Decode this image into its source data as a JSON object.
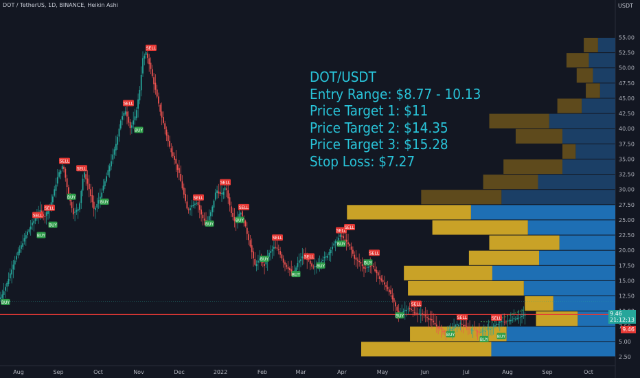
{
  "header": {
    "symbol_line": "DOT / TetherUS, 1D, BINANCE, Heikin Ashi",
    "axis_unit": "USDT"
  },
  "annotation": {
    "lines": [
      "DOT/USDT",
      "Entry Range: $8.77 - 10.13",
      "Price Target 1: $11",
      "Price Target 2: $14.35",
      "Price Target 3: $15.28",
      "Stop Loss: $7.27"
    ]
  },
  "price_tags": {
    "last_price": "9.46",
    "countdown": "21:12:13",
    "level_price": "9.46"
  },
  "colors": {
    "background": "#131722",
    "up_candle": "#26a69a",
    "down_candle": "#ef5350",
    "annotation_text": "#29c4d9",
    "stop_line": "#e53935",
    "vp_gold": "#c9a227",
    "vp_blue": "#1e6fb4"
  },
  "chart_data": {
    "type": "candlestick",
    "y_ticks": [
      "55.00",
      "52.50",
      "50.00",
      "47.50",
      "45.00",
      "42.50",
      "40.00",
      "37.50",
      "35.00",
      "32.50",
      "30.00",
      "27.50",
      "25.00",
      "22.50",
      "20.00",
      "17.50",
      "15.00",
      "12.50",
      "10.00",
      "7.50",
      "5.00",
      "2.50"
    ],
    "ylim": [
      0,
      57
    ],
    "x_ticks": [
      "Aug",
      "Sep",
      "Oct",
      "Nov",
      "Dec",
      "2022",
      "Feb",
      "Mar",
      "Apr",
      "May",
      "Jun",
      "Jul",
      "Aug",
      "Sep",
      "Oct"
    ],
    "horizontal_line": 9.46,
    "price_path": [
      [
        0,
        12.0
      ],
      [
        10,
        14.5
      ],
      [
        20,
        18.0
      ],
      [
        30,
        20.5
      ],
      [
        40,
        23.0
      ],
      [
        50,
        25.0
      ],
      [
        58,
        26.5
      ],
      [
        65,
        25.5
      ],
      [
        75,
        28.0
      ],
      [
        85,
        32.5
      ],
      [
        92,
        34.0
      ],
      [
        100,
        29.0
      ],
      [
        107,
        26.0
      ],
      [
        115,
        27.0
      ],
      [
        122,
        33.0
      ],
      [
        130,
        30.0
      ],
      [
        137,
        26.5
      ],
      [
        145,
        28.5
      ],
      [
        152,
        31.0
      ],
      [
        160,
        34.0
      ],
      [
        168,
        37.0
      ],
      [
        176,
        41.5
      ],
      [
        183,
        43.0
      ],
      [
        190,
        40.0
      ],
      [
        197,
        42.0
      ],
      [
        203,
        46.0
      ],
      [
        208,
        51.5
      ],
      [
        213,
        52.5
      ],
      [
        219,
        50.0
      ],
      [
        226,
        46.5
      ],
      [
        233,
        43.0
      ],
      [
        240,
        40.0
      ],
      [
        247,
        37.0
      ],
      [
        254,
        35.0
      ],
      [
        261,
        32.5
      ],
      [
        267,
        29.5
      ],
      [
        273,
        26.5
      ],
      [
        280,
        27.5
      ],
      [
        287,
        28.0
      ],
      [
        294,
        25.5
      ],
      [
        301,
        24.5
      ],
      [
        308,
        26.5
      ],
      [
        315,
        30.0
      ],
      [
        322,
        29.0
      ],
      [
        329,
        30.5
      ],
      [
        336,
        26.5
      ],
      [
        343,
        24.5
      ],
      [
        350,
        26.5
      ],
      [
        357,
        24.0
      ],
      [
        364,
        21.0
      ],
      [
        371,
        17.5
      ],
      [
        378,
        18.5
      ],
      [
        385,
        17.5
      ],
      [
        392,
        19.5
      ],
      [
        399,
        20.5
      ],
      [
        406,
        20.0
      ],
      [
        413,
        18.0
      ],
      [
        420,
        17.0
      ],
      [
        427,
        16.0
      ],
      [
        434,
        18.0
      ],
      [
        441,
        19.0
      ],
      [
        448,
        18.5
      ],
      [
        455,
        17.0
      ],
      [
        462,
        17.5
      ],
      [
        469,
        18.5
      ],
      [
        476,
        19.0
      ],
      [
        483,
        20.5
      ],
      [
        490,
        21.5
      ],
      [
        496,
        22.5
      ],
      [
        503,
        21.5
      ],
      [
        510,
        20.5
      ],
      [
        517,
        18.5
      ],
      [
        524,
        18.0
      ],
      [
        531,
        17.0
      ],
      [
        538,
        17.5
      ],
      [
        545,
        17.0
      ],
      [
        552,
        15.5
      ],
      [
        559,
        14.5
      ],
      [
        566,
        13.5
      ],
      [
        573,
        11.5
      ],
      [
        580,
        9.5
      ],
      [
        587,
        10.0
      ],
      [
        594,
        10.5
      ],
      [
        601,
        10.0
      ],
      [
        608,
        9.5
      ],
      [
        615,
        9.5
      ],
      [
        622,
        9.0
      ],
      [
        629,
        8.3
      ],
      [
        636,
        7.5
      ],
      [
        643,
        6.8
      ],
      [
        650,
        6.5
      ],
      [
        657,
        7.0
      ],
      [
        664,
        7.6
      ],
      [
        670,
        8.0
      ],
      [
        676,
        7.5
      ],
      [
        683,
        7.0
      ],
      [
        690,
        7.0
      ],
      [
        697,
        6.6
      ],
      [
        704,
        6.7
      ],
      [
        711,
        7.0
      ],
      [
        718,
        7.4
      ],
      [
        725,
        7.9
      ],
      [
        731,
        8.4
      ],
      [
        738,
        8.2
      ],
      [
        745,
        8.7
      ],
      [
        752,
        8.9
      ],
      [
        759,
        9.1
      ],
      [
        765,
        9.3
      ]
    ],
    "signals": [
      {
        "label": "BUY",
        "type": "buy",
        "x": 8,
        "y": 11.5
      },
      {
        "label": "SELL",
        "type": "sell",
        "x": 55,
        "y": 25.8
      },
      {
        "label": "BUY",
        "type": "buy",
        "x": 60,
        "y": 22.5
      },
      {
        "label": "SELL",
        "type": "sell",
        "x": 72,
        "y": 27.0
      },
      {
        "label": "BUY",
        "type": "buy",
        "x": 77,
        "y": 24.2
      },
      {
        "label": "SELL",
        "type": "sell",
        "x": 94,
        "y": 34.7
      },
      {
        "label": "BUY",
        "type": "buy",
        "x": 104,
        "y": 28.8
      },
      {
        "label": "SELL",
        "type": "sell",
        "x": 119,
        "y": 33.5
      },
      {
        "label": "BUY",
        "type": "buy",
        "x": 152,
        "y": 28.0
      },
      {
        "label": "SELL",
        "type": "sell",
        "x": 187,
        "y": 44.2
      },
      {
        "label": "BUY",
        "type": "buy",
        "x": 202,
        "y": 39.8
      },
      {
        "label": "SELL",
        "type": "sell",
        "x": 220,
        "y": 53.3
      },
      {
        "label": "SELL",
        "type": "sell",
        "x": 289,
        "y": 28.7
      },
      {
        "label": "BUY",
        "type": "buy",
        "x": 305,
        "y": 24.4
      },
      {
        "label": "SELL",
        "type": "sell",
        "x": 328,
        "y": 31.2
      },
      {
        "label": "SELL",
        "type": "sell",
        "x": 355,
        "y": 27.1
      },
      {
        "label": "BUY",
        "type": "buy",
        "x": 349,
        "y": 25.0
      },
      {
        "label": "SELL",
        "type": "sell",
        "x": 404,
        "y": 22.1
      },
      {
        "label": "BUY",
        "type": "buy",
        "x": 385,
        "y": 18.6
      },
      {
        "label": "SELL",
        "type": "sell",
        "x": 450,
        "y": 19.0
      },
      {
        "label": "BUY",
        "type": "buy",
        "x": 431,
        "y": 16.1
      },
      {
        "label": "BUY",
        "type": "buy",
        "x": 467,
        "y": 17.5
      },
      {
        "label": "SELL",
        "type": "sell",
        "x": 497,
        "y": 23.3
      },
      {
        "label": "SELL",
        "type": "sell",
        "x": 509,
        "y": 23.8
      },
      {
        "label": "BUY",
        "type": "buy",
        "x": 497,
        "y": 21.1
      },
      {
        "label": "SELL",
        "type": "sell",
        "x": 545,
        "y": 19.6
      },
      {
        "label": "BUY",
        "type": "buy",
        "x": 536,
        "y": 18.0
      },
      {
        "label": "BUY",
        "type": "buy",
        "x": 582,
        "y": 9.3
      },
      {
        "label": "SELL",
        "type": "sell",
        "x": 606,
        "y": 11.2
      },
      {
        "label": "SELL",
        "type": "sell",
        "x": 673,
        "y": 9.0
      },
      {
        "label": "BUY",
        "type": "buy",
        "x": 656,
        "y": 6.2
      },
      {
        "label": "SELL",
        "type": "sell",
        "x": 723,
        "y": 8.9
      },
      {
        "label": "BUY",
        "type": "buy",
        "x": 705,
        "y": 5.4
      },
      {
        "label": "BUY",
        "type": "buy",
        "x": 730,
        "y": 5.9
      }
    ],
    "volume_profile": [
      {
        "price": 53.75,
        "gold": 0.014,
        "blue": 0.017
      },
      {
        "price": 51.25,
        "gold": 0.022,
        "blue": 0.026
      },
      {
        "price": 48.75,
        "gold": 0.016,
        "blue": 0.022
      },
      {
        "price": 46.25,
        "gold": 0.014,
        "blue": 0.015
      },
      {
        "price": 43.75,
        "gold": 0.024,
        "blue": 0.033
      },
      {
        "price": 41.25,
        "gold": 0.059,
        "blue": 0.065
      },
      {
        "price": 38.75,
        "gold": 0.046,
        "blue": 0.052
      },
      {
        "price": 36.25,
        "gold": 0.013,
        "blue": 0.039
      },
      {
        "price": 33.75,
        "gold": 0.058,
        "blue": 0.052
      },
      {
        "price": 31.25,
        "gold": 0.054,
        "blue": 0.076
      },
      {
        "price": 28.75,
        "gold": 0.079,
        "blue": 0.112
      },
      {
        "price": 26.25,
        "gold": 0.122,
        "blue": 0.142
      },
      {
        "price": 23.75,
        "gold": 0.094,
        "blue": 0.086
      },
      {
        "price": 21.25,
        "gold": 0.069,
        "blue": 0.055
      },
      {
        "price": 18.75,
        "gold": 0.069,
        "blue": 0.075
      },
      {
        "price": 16.25,
        "gold": 0.087,
        "blue": 0.121
      },
      {
        "price": 13.75,
        "gold": 0.114,
        "blue": 0.09
      },
      {
        "price": 11.25,
        "gold": 0.028,
        "blue": 0.061
      },
      {
        "price": 8.75,
        "gold": 0.041,
        "blue": 0.037
      },
      {
        "price": 6.25,
        "gold": 0.095,
        "blue": 0.107
      },
      {
        "price": 3.75,
        "gold": 0.128,
        "blue": 0.122
      }
    ]
  }
}
